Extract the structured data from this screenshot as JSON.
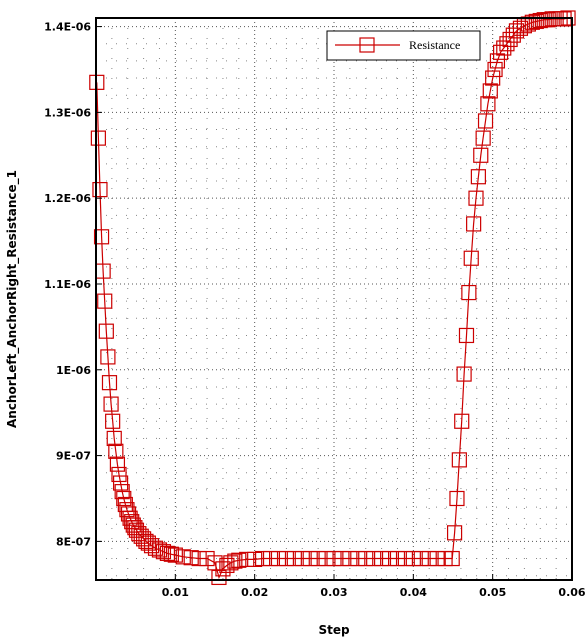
{
  "chart_data": {
    "type": "line",
    "title": "",
    "xlabel": "Step",
    "ylabel": "AnchorLeft_AnchorRight_Resistance_1",
    "xlim": [
      0,
      0.06
    ],
    "ylim": [
      7.55e-07,
      1.41e-06
    ],
    "x_ticks": [
      0.01,
      0.02,
      0.03,
      0.04,
      0.05,
      0.06
    ],
    "x_tick_labels": [
      "0.01",
      "0.02",
      "0.03",
      "0.04",
      "0.05",
      "0.06"
    ],
    "y_ticks": [
      8e-07,
      9e-07,
      1e-06,
      1.1e-06,
      1.2e-06,
      1.3e-06,
      1.4e-06
    ],
    "y_tick_labels": [
      "8E-07",
      "9E-07",
      "1E-06",
      "1.1E-06",
      "1.2E-06",
      "1.3E-06",
      "1.4E-06"
    ],
    "grid": true,
    "legend_position": "top-right",
    "series": [
      {
        "name": "Resistance",
        "color": "#cc0000",
        "marker": "square",
        "x": [
          0.0001,
          0.0003,
          0.0005,
          0.0007,
          0.0009,
          0.0011,
          0.0013,
          0.0015,
          0.0017,
          0.0019,
          0.0021,
          0.0023,
          0.0025,
          0.0027,
          0.0029,
          0.0031,
          0.0033,
          0.0035,
          0.0037,
          0.0039,
          0.0041,
          0.0043,
          0.0045,
          0.0047,
          0.0049,
          0.0051,
          0.0054,
          0.0057,
          0.006,
          0.0063,
          0.0066,
          0.007,
          0.0075,
          0.008,
          0.0085,
          0.009,
          0.0095,
          0.01,
          0.011,
          0.012,
          0.013,
          0.014,
          0.015,
          0.0155,
          0.016,
          0.0165,
          0.017,
          0.0175,
          0.018,
          0.019,
          0.02,
          0.021,
          0.022,
          0.023,
          0.024,
          0.025,
          0.026,
          0.027,
          0.028,
          0.029,
          0.03,
          0.031,
          0.032,
          0.033,
          0.034,
          0.035,
          0.036,
          0.037,
          0.038,
          0.039,
          0.04,
          0.041,
          0.042,
          0.043,
          0.044,
          0.0449,
          0.0452,
          0.0455,
          0.0458,
          0.0461,
          0.0464,
          0.0467,
          0.047,
          0.0473,
          0.0476,
          0.0479,
          0.0482,
          0.0485,
          0.0488,
          0.0491,
          0.0494,
          0.0497,
          0.05,
          0.0503,
          0.0506,
          0.051,
          0.0514,
          0.0518,
          0.0522,
          0.0526,
          0.053,
          0.0535,
          0.054,
          0.0545,
          0.055,
          0.0555,
          0.056,
          0.0565,
          0.057,
          0.0575,
          0.058,
          0.0585,
          0.059,
          0.0595
        ],
        "y": [
          1.335e-06,
          1.27e-06,
          1.21e-06,
          1.155e-06,
          1.115e-06,
          1.08e-06,
          1.045e-06,
          1.015e-06,
          9.85e-07,
          9.6e-07,
          9.4e-07,
          9.2e-07,
          9.05e-07,
          8.9e-07,
          8.78e-07,
          8.68e-07,
          8.58e-07,
          8.5e-07,
          8.43e-07,
          8.37e-07,
          8.32e-07,
          8.27e-07,
          8.23e-07,
          8.19e-07,
          8.16e-07,
          8.13e-07,
          8.09e-07,
          8.06e-07,
          8.03e-07,
          8e-07,
          7.98e-07,
          7.95e-07,
          7.92e-07,
          7.9e-07,
          7.88e-07,
          7.86e-07,
          7.85e-07,
          7.84e-07,
          7.82e-07,
          7.81e-07,
          7.8e-07,
          7.8e-07,
          7.75e-07,
          7.58e-07,
          7.68e-07,
          7.72e-07,
          7.75e-07,
          7.77e-07,
          7.78e-07,
          7.79e-07,
          7.79e-07,
          7.8e-07,
          7.8e-07,
          7.8e-07,
          7.8e-07,
          7.8e-07,
          7.8e-07,
          7.8e-07,
          7.8e-07,
          7.8e-07,
          7.8e-07,
          7.8e-07,
          7.8e-07,
          7.8e-07,
          7.8e-07,
          7.8e-07,
          7.8e-07,
          7.8e-07,
          7.8e-07,
          7.8e-07,
          7.8e-07,
          7.8e-07,
          7.8e-07,
          7.8e-07,
          7.8e-07,
          7.8e-07,
          8.1e-07,
          8.5e-07,
          8.95e-07,
          9.4e-07,
          9.95e-07,
          1.04e-06,
          1.09e-06,
          1.13e-06,
          1.17e-06,
          1.2e-06,
          1.225e-06,
          1.25e-06,
          1.27e-06,
          1.29e-06,
          1.31e-06,
          1.325e-06,
          1.34e-06,
          1.35e-06,
          1.36e-06,
          1.37e-06,
          1.375e-06,
          1.38e-06,
          1.385e-06,
          1.39e-06,
          1.395e-06,
          1.398e-06,
          1.401e-06,
          1.403e-06,
          1.405e-06,
          1.406e-06,
          1.407e-06,
          1.408e-06,
          1.408e-06,
          1.409e-06,
          1.409e-06,
          1.409e-06,
          1.409e-06,
          1.41e-06
        ]
      }
    ]
  }
}
